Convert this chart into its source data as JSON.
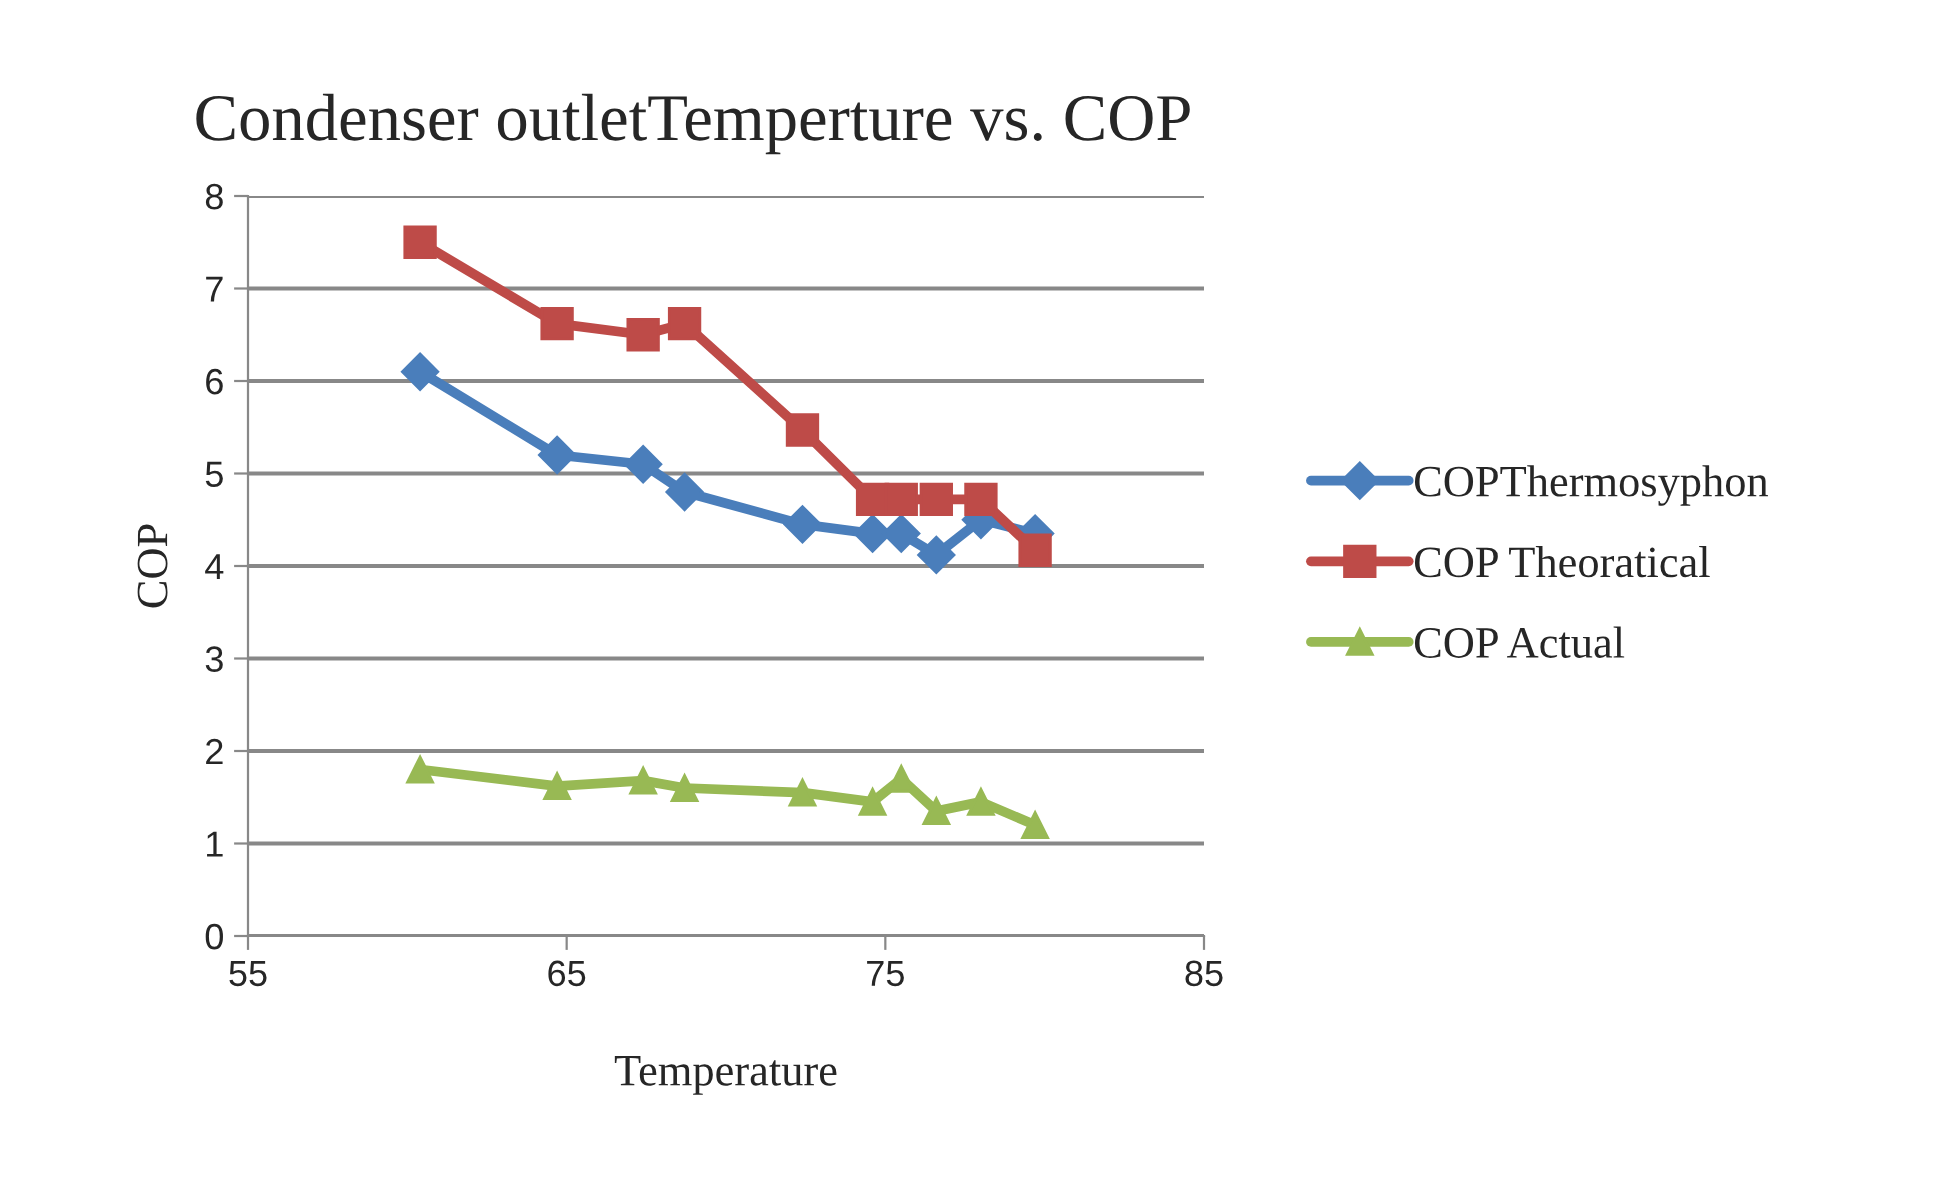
{
  "chart_data": {
    "type": "line",
    "title": "Condenser outletTemperture vs. COP",
    "xlabel": "Temperature",
    "ylabel": "COP",
    "x": [
      60.4,
      64.7,
      67.4,
      68.7,
      72.4,
      74.6,
      75.5,
      76.6,
      78.0,
      79.7
    ],
    "series": [
      {
        "name": "COPThermosyphon",
        "color": "#4a7ebb",
        "marker": "diamond",
        "values": [
          6.1,
          5.2,
          5.1,
          4.8,
          4.45,
          4.35,
          4.35,
          4.12,
          4.5,
          4.35
        ]
      },
      {
        "name": "COP Theoratical",
        "color": "#be4b48",
        "marker": "square",
        "values": [
          7.5,
          6.62,
          6.5,
          6.62,
          5.47,
          4.72,
          4.72,
          4.72,
          4.72,
          4.17
        ]
      },
      {
        "name": "COP Actual",
        "color": "#98b954",
        "marker": "triangle",
        "values": [
          1.8,
          1.62,
          1.68,
          1.6,
          1.55,
          1.45,
          1.7,
          1.35,
          1.45,
          1.2
        ]
      }
    ],
    "xlim": [
      55,
      85
    ],
    "xticks": [
      55,
      65,
      75,
      85
    ],
    "ylim": [
      0,
      8
    ],
    "yticks": [
      0,
      1,
      2,
      3,
      4,
      5,
      6,
      7,
      8
    ],
    "grid": "y",
    "legend": "right"
  }
}
